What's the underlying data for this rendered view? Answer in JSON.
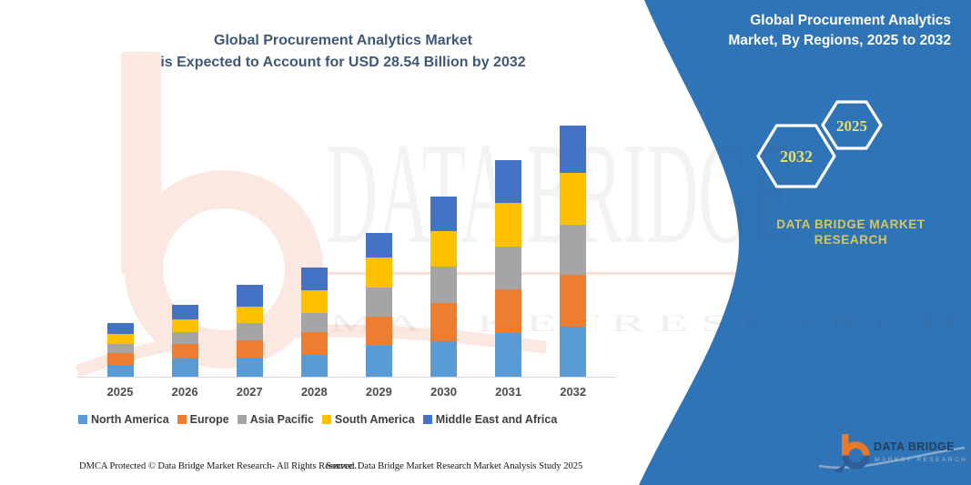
{
  "header": {
    "title_line1": "Global Procurement Analytics Market",
    "title_line2": "is Expected to Account for USD 28.54 Billion by 2032"
  },
  "side_panel": {
    "heading_line1": "Global Procurement Analytics",
    "heading_line2": "Market, By Regions, 2025 to 2032",
    "hexagons": {
      "left_year": "2032",
      "right_year": "2025"
    },
    "brand_line1": "DATA BRIDGE MARKET",
    "brand_line2": "RESEARCH",
    "panel_color": "#2F74B6",
    "accent_text_color": "#E6DD6E"
  },
  "logo": {
    "name": "DATA BRIDGE",
    "tagline": "MARKET RESEARCH"
  },
  "watermark": {
    "big_text": "DATA BRIDGE",
    "sub_text": "M A R K E T    R E S E A R C H"
  },
  "footer": {
    "left": "DMCA Protected © Data Bridge Market Research-  All Rights Reserved.",
    "right": "Source: Data Bridge Market Research  Market Analysis Study 2025"
  },
  "chart_data": {
    "type": "bar",
    "stacked": true,
    "title": "Global Procurement Analytics Market, By Regions, 2025 to 2032",
    "units": "USD Billion (estimated; 2032 total stated as 28.54)",
    "categories": [
      "2025",
      "2026",
      "2027",
      "2028",
      "2029",
      "2030",
      "2031",
      "2032"
    ],
    "series": [
      {
        "name": "North America",
        "color": "#5B9BD5",
        "values": [
          1.34,
          2.07,
          2.17,
          2.48,
          3.52,
          4.03,
          4.96,
          5.69
        ]
      },
      {
        "name": "Europe",
        "color": "#ED7D31",
        "values": [
          1.34,
          1.65,
          1.96,
          2.59,
          3.31,
          4.34,
          4.96,
          5.89
        ]
      },
      {
        "name": "Asia Pacific",
        "color": "#A5A5A5",
        "values": [
          1.03,
          1.34,
          1.96,
          2.17,
          3.31,
          4.14,
          4.86,
          5.69
        ]
      },
      {
        "name": "South America",
        "color": "#FFC000",
        "values": [
          1.14,
          1.45,
          1.86,
          2.59,
          3.41,
          4.03,
          4.96,
          5.89
        ]
      },
      {
        "name": "Middle East and Africa",
        "color": "#4472C4",
        "values": [
          1.24,
          1.65,
          2.48,
          2.59,
          2.79,
          3.93,
          4.86,
          5.38
        ]
      }
    ],
    "totals": [
      6.1,
      8.17,
      10.44,
      12.41,
      16.34,
      20.48,
      24.61,
      28.54
    ],
    "ylim": [
      0,
      30
    ],
    "grid": false,
    "y_axis_shown": false,
    "legend_position": "bottom"
  }
}
